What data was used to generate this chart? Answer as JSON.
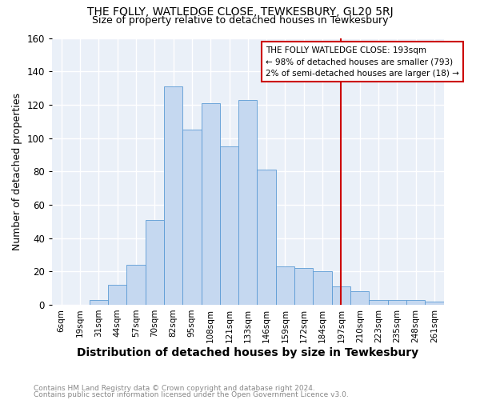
{
  "title": "THE FOLLY, WATLEDGE CLOSE, TEWKESBURY, GL20 5RJ",
  "subtitle": "Size of property relative to detached houses in Tewkesbury",
  "xlabel": "Distribution of detached houses by size in Tewkesbury",
  "ylabel": "Number of detached properties",
  "footnote1": "Contains HM Land Registry data © Crown copyright and database right 2024.",
  "footnote2": "Contains public sector information licensed under the Open Government Licence v3.0.",
  "categories": [
    "6sqm",
    "19sqm",
    "31sqm",
    "44sqm",
    "57sqm",
    "70sqm",
    "82sqm",
    "95sqm",
    "108sqm",
    "121sqm",
    "133sqm",
    "146sqm",
    "159sqm",
    "172sqm",
    "184sqm",
    "197sqm",
    "210sqm",
    "223sqm",
    "235sqm",
    "248sqm",
    "261sqm"
  ],
  "values": [
    0,
    0,
    3,
    12,
    24,
    51,
    131,
    105,
    121,
    95,
    123,
    81,
    23,
    22,
    20,
    11,
    8,
    3,
    3,
    3,
    2
  ],
  "bar_color": "#c5d8f0",
  "bar_edge_color": "#5b9bd5",
  "vline_label": "THE FOLLY WATLEDGE CLOSE: 193sqm",
  "vline_text1": "← 98% of detached houses are smaller (793)",
  "vline_text2": "2% of semi-detached houses are larger (18) →",
  "vline_color": "#cc0000",
  "annotation_box_color": "#cc0000",
  "ylim": [
    0,
    160
  ],
  "yticks": [
    0,
    20,
    40,
    60,
    80,
    100,
    120,
    140,
    160
  ],
  "bg_color": "#eaf0f8",
  "title_fontsize": 10,
  "subtitle_fontsize": 9,
  "xlabel_fontsize": 10,
  "ylabel_fontsize": 9,
  "footnote_color": "#888888"
}
